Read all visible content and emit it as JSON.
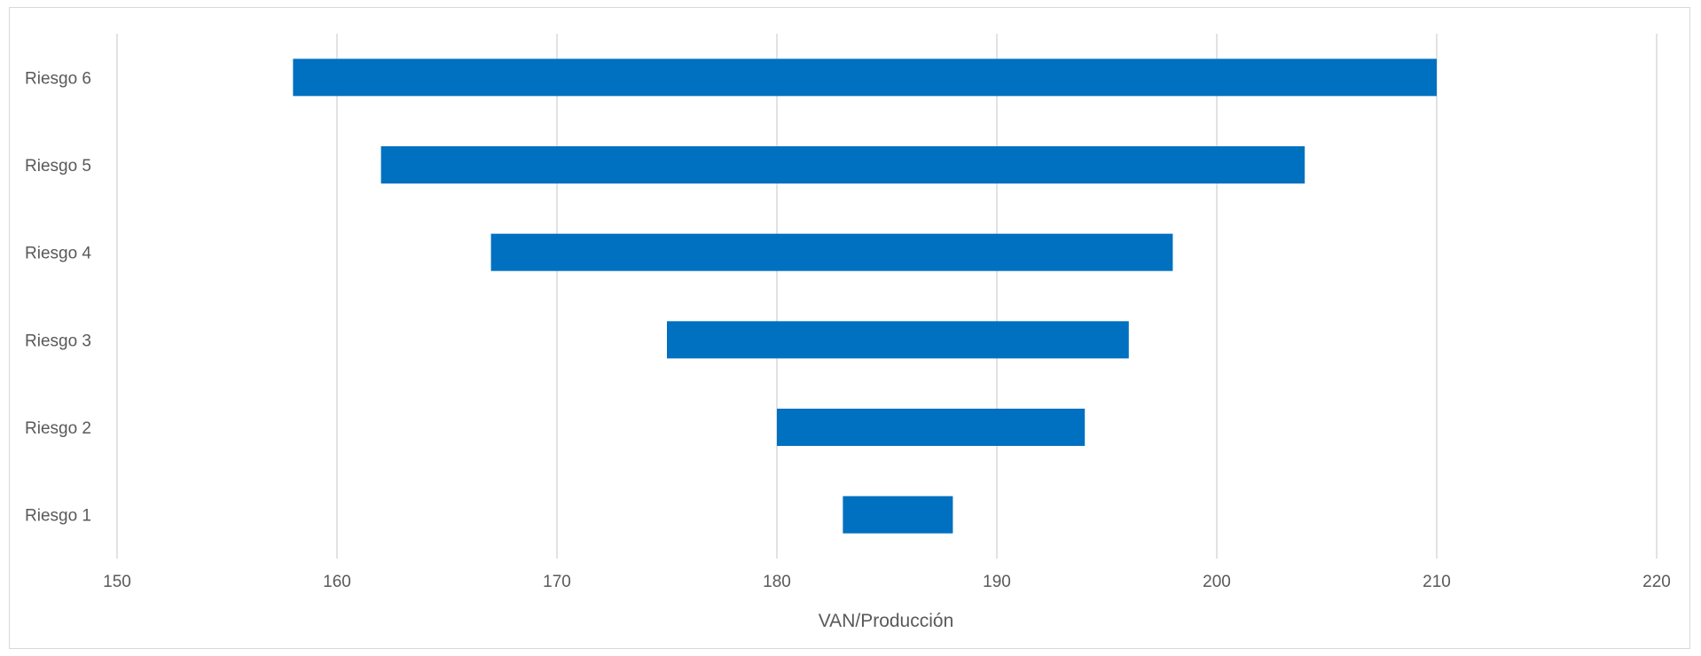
{
  "chart_data": {
    "type": "bar",
    "orientation": "horizontal-floating",
    "categories": [
      "Riesgo 1",
      "Riesgo 2",
      "Riesgo 3",
      "Riesgo 4",
      "Riesgo 5",
      "Riesgo 6"
    ],
    "ranges": [
      [
        183,
        188
      ],
      [
        180,
        194
      ],
      [
        175,
        196
      ],
      [
        167,
        198
      ],
      [
        162,
        204
      ],
      [
        158,
        210
      ]
    ],
    "xlim": [
      150,
      220
    ],
    "xticks": [
      150,
      160,
      170,
      180,
      190,
      200,
      210,
      220
    ],
    "xlabel": "VAN/Producción",
    "grid": "vertical",
    "bar_color": "#0070c0",
    "grid_color": "#d9d9d9",
    "text_color": "#595959"
  }
}
